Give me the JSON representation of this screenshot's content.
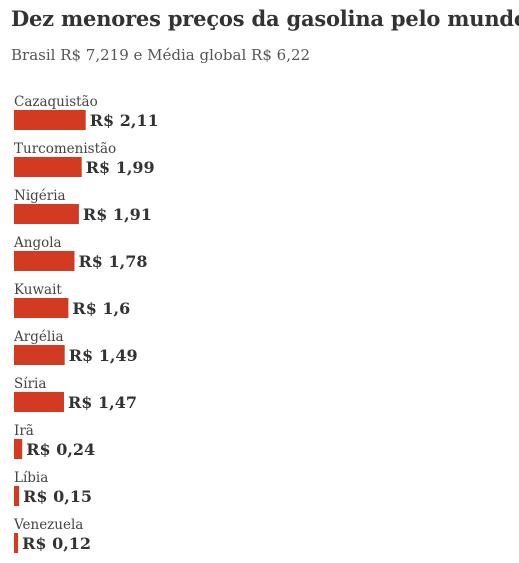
{
  "chart_data": {
    "type": "bar",
    "orientation": "horizontal",
    "title": "Dez menores preços da gasolina pelo mundo",
    "subtitle": "Brasil R$ 7,219 e Média global R$ 6,22",
    "categories": [
      "Cazaquistão",
      "Turcomenistão",
      "Nigéria",
      "Angola",
      "Kuwait",
      "Argélia",
      "Síria",
      "Irã",
      "Líbia",
      "Venezuela"
    ],
    "values": [
      2.11,
      1.99,
      1.91,
      1.78,
      1.6,
      1.49,
      1.47,
      0.24,
      0.15,
      0.12
    ],
    "value_labels": [
      "R$ 2,11",
      "R$ 1,99",
      "R$ 1,91",
      "R$ 1,78",
      "R$ 1,6",
      "R$ 1,49",
      "R$ 1,47",
      "R$ 0,24",
      "R$ 0,15",
      "R$ 0,12"
    ],
    "bar_color": "#d33a22",
    "grid": false,
    "legend": false
  }
}
